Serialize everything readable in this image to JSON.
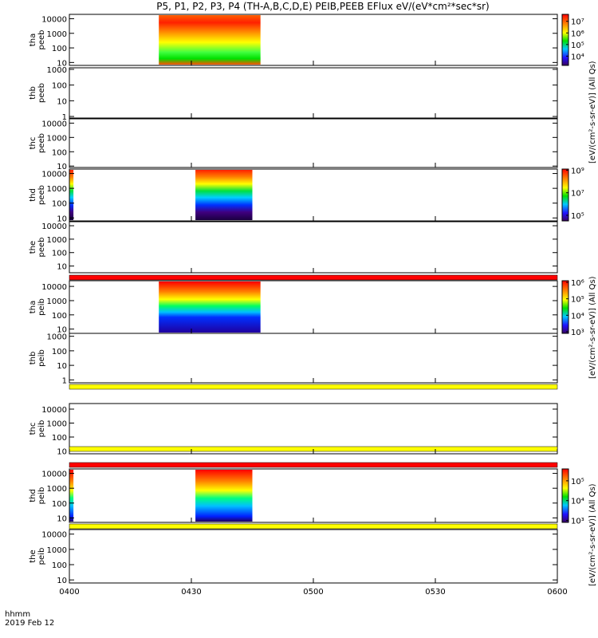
{
  "title": "P5, P1, P2, P3, P4 (TH-A,B,C,D,E) PEIB,PEEB EFlux eV/(eV*cm²*sec*sr)",
  "colorbar_labels": {
    "top": "[eV/(cm²-s-sr-eV)] (All Qs)",
    "ion_c": "[eV/(cm²-s-sr-eV)] (All Qs)",
    "ion_d": "[eV/(cm²-s-sr-eV)] (All Qs)"
  },
  "footer": {
    "time_label": "hhmm",
    "date_label": "2019 Feb 12"
  },
  "chart_data": {
    "type": "heatmap",
    "xaxis": {
      "range": [
        "0400",
        "0600"
      ],
      "ticks": [
        "0400",
        "0430",
        "0500",
        "0530",
        "0600"
      ]
    },
    "panels": [
      {
        "id": "tha-peeb",
        "label": [
          "tha",
          "peeb"
        ],
        "yticks": [
          "10",
          "100",
          "1000",
          "10000"
        ],
        "ymin_exp": 0.8,
        "ymax_exp": 4.3,
        "data_spans": [
          [
            "0422",
            "0447"
          ]
        ],
        "colorbar": {
          "min_exp": 3.2,
          "max_exp": 7.6,
          "labels": [
            "10⁴",
            "10⁵",
            "10⁶",
            "10⁷"
          ]
        }
      },
      {
        "id": "thb-peeb",
        "label": [
          "thb",
          "peeb"
        ],
        "yticks": [
          "1",
          "10",
          "100",
          "1000"
        ],
        "ymin_exp": -0.1,
        "ymax_exp": 3.1,
        "data_spans": []
      },
      {
        "id": "thc-peeb",
        "label": [
          "thc",
          "peeb"
        ],
        "yticks": [
          "10",
          "100",
          "1000",
          "10000"
        ],
        "ymin_exp": 0.9,
        "ymax_exp": 4.3,
        "data_spans": []
      },
      {
        "id": "thd-peeb",
        "label": [
          "thd",
          "peeb"
        ],
        "yticks": [
          "10",
          "100",
          "1000",
          "10000"
        ],
        "ymin_exp": 0.8,
        "ymax_exp": 4.3,
        "data_spans": [
          [
            "0400",
            "0401"
          ],
          [
            "0431",
            "0445"
          ]
        ],
        "colorbar": {
          "min_exp": 4.5,
          "max_exp": 9.1,
          "labels": [
            "10⁵",
            "10⁷",
            "10⁹"
          ]
        }
      },
      {
        "id": "the-peeb",
        "label": [
          "the",
          "peeb"
        ],
        "yticks": [
          "10",
          "100",
          "1000",
          "10000"
        ],
        "ymin_exp": 0.5,
        "ymax_exp": 4.3,
        "data_spans": []
      },
      {
        "id": "tha-peib",
        "label": [
          "tha",
          "peib"
        ],
        "yticks": [
          "10",
          "100",
          "1000",
          "10000"
        ],
        "ymin_exp": 0.7,
        "ymax_exp": 4.4,
        "data_spans": [
          [
            "0422",
            "0447"
          ]
        ],
        "colorbar": {
          "min_exp": 2.9,
          "max_exp": 6.1,
          "labels": [
            "10³",
            "10⁴",
            "10⁵",
            "10⁶"
          ]
        }
      },
      {
        "id": "thb-peib",
        "label": [
          "thb",
          "peib"
        ],
        "yticks": [
          "1",
          "10",
          "100",
          "1000"
        ],
        "ymin_exp": -0.2,
        "ymax_exp": 3.2,
        "data_spans": []
      },
      {
        "id": "thc-peib",
        "label": [
          "thc",
          "peib"
        ],
        "yticks": [
          "10",
          "100",
          "1000",
          "10000"
        ],
        "ymin_exp": 0.8,
        "ymax_exp": 4.4,
        "data_spans": []
      },
      {
        "id": "thd-peib",
        "label": [
          "thd",
          "peib"
        ],
        "yticks": [
          "10",
          "100",
          "1000",
          "10000"
        ],
        "ymin_exp": 0.7,
        "ymax_exp": 4.3,
        "data_spans": [
          [
            "0400",
            "0401"
          ],
          [
            "0431",
            "0445"
          ]
        ],
        "colorbar": {
          "min_exp": 2.9,
          "max_exp": 5.6,
          "labels": [
            "10³",
            "10⁴",
            "10⁵"
          ]
        }
      },
      {
        "id": "the-peib",
        "label": [
          "the",
          "peib"
        ],
        "yticks": [
          "10",
          "100",
          "1000",
          "10000"
        ],
        "ymin_exp": 0.8,
        "ymax_exp": 4.3,
        "data_spans": []
      }
    ],
    "status_bars": [
      {
        "after_panel": "the-peeb",
        "color": "#ff0000"
      },
      {
        "after_panel": "tha-peib",
        "color": "#ffff00"
      },
      {
        "after_panel": "thb-peib",
        "color": "#ffff00"
      },
      {
        "after_panel": "thc-peib",
        "color": "#ff0000"
      },
      {
        "after_panel": "thd-peib",
        "color": "#ffff00"
      }
    ]
  }
}
